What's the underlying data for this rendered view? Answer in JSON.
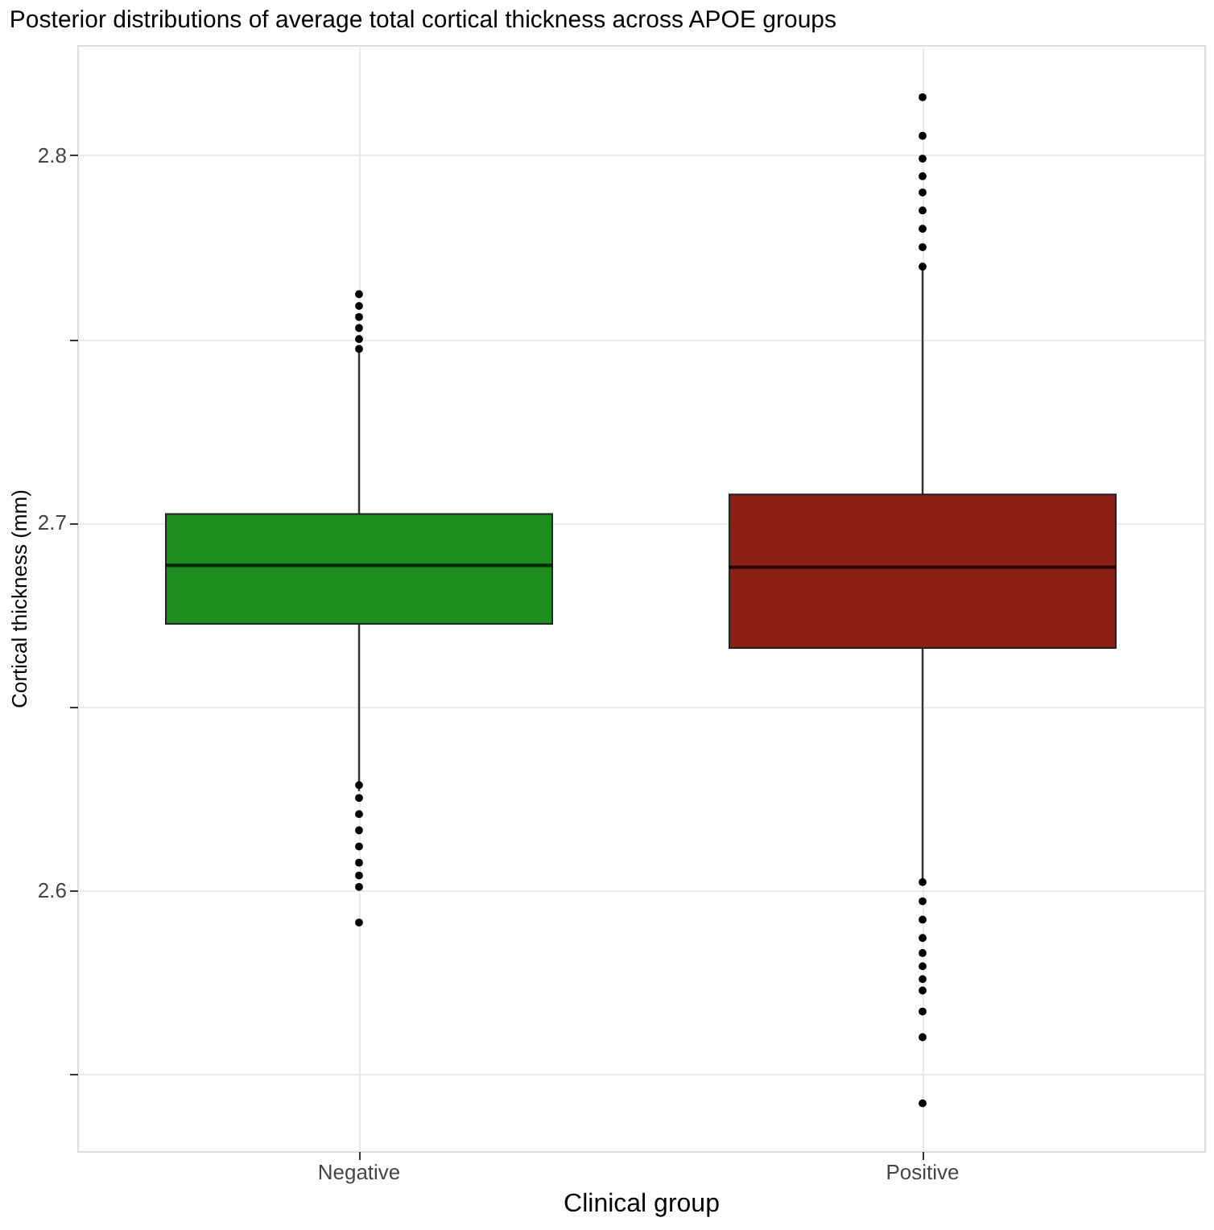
{
  "chart_data": {
    "type": "box",
    "title": "Posterior distributions of average total cortical thickness across APOE groups",
    "xlabel": "Clinical group",
    "ylabel": "Cortical thickness (mm)",
    "categories": [
      "Negative",
      "Positive"
    ],
    "colors": [
      "#1e8c1e",
      "#8b2014"
    ],
    "boxes": [
      {
        "low": 2.627,
        "q1": 2.6725,
        "median": 2.6884,
        "q3": 2.7024,
        "high": 2.747,
        "outliers": [
          2.7622,
          2.759,
          2.756,
          2.753,
          2.75,
          2.7473,
          2.6286,
          2.6251,
          2.6207,
          2.6163,
          2.6119,
          2.6075,
          2.604,
          2.6009,
          2.5912
        ]
      },
      {
        "low": 2.6022,
        "q1": 2.6659,
        "median": 2.6879,
        "q3": 2.7077,
        "high": 2.7697,
        "outliers": [
          2.8158,
          2.8053,
          2.7991,
          2.7943,
          2.7899,
          2.785,
          2.78,
          2.775,
          2.7697,
          2.6022,
          2.597,
          2.592,
          2.587,
          2.5829,
          2.5793,
          2.5758,
          2.5727,
          2.567,
          2.56,
          2.542
        ]
      }
    ],
    "ylim": [
      2.529,
      2.83
    ],
    "yticks": [
      {
        "value": 2.55,
        "label": null
      },
      2.6,
      {
        "value": 2.65,
        "label": null
      },
      2.7,
      {
        "value": 2.75,
        "label": null
      },
      2.8
    ],
    "grid": true
  }
}
